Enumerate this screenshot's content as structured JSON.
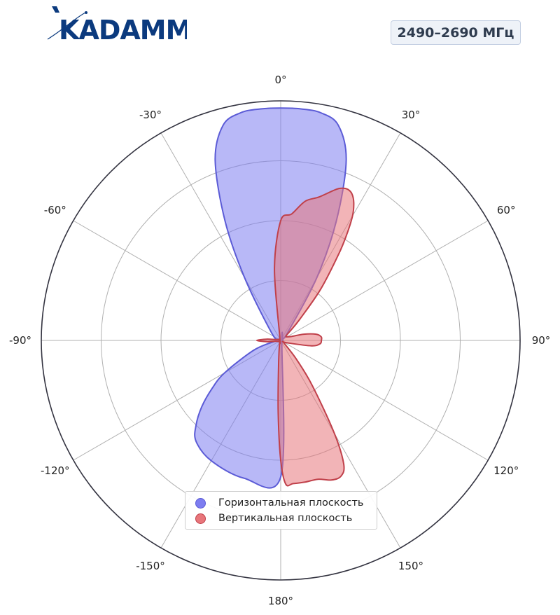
{
  "brand": {
    "name": "KADAMM"
  },
  "badge": {
    "text": "2490–2690 МГц"
  },
  "chart_data": {
    "type": "polar",
    "theta_zero": "top",
    "theta_direction": "clockwise",
    "theta_tick_labels": [
      "0°",
      "30°",
      "60°",
      "90°",
      "120°",
      "150°",
      "180°",
      "-150°",
      "-120°",
      "-90°",
      "-60°",
      "-30°"
    ],
    "r_range": [
      0,
      1
    ],
    "r_gridlines": [
      0.25,
      0.5,
      0.75,
      1.0
    ],
    "grid": true,
    "legend_position": "bottom-center",
    "series": [
      {
        "name": "Горизонтальная плоскость",
        "color": "#5b5bd6",
        "fill": "#7d7df0",
        "theta_deg": [
          0,
          5,
          10,
          15,
          20,
          25,
          30,
          40,
          60,
          80,
          90,
          100,
          120,
          150,
          180,
          195,
          210,
          220,
          225,
          230,
          235,
          240,
          250,
          260,
          265,
          270,
          275,
          290,
          310,
          330,
          335,
          340,
          345,
          350,
          355
        ],
        "r": [
          0.97,
          0.97,
          0.965,
          0.93,
          0.8,
          0.55,
          0.3,
          0.05,
          0.01,
          0.01,
          0.01,
          0.01,
          0.01,
          0.01,
          0.57,
          0.595,
          0.58,
          0.55,
          0.5,
          0.43,
          0.35,
          0.27,
          0.12,
          0.03,
          0.02,
          0.01,
          0.01,
          0.01,
          0.05,
          0.3,
          0.55,
          0.8,
          0.93,
          0.965,
          0.97
        ]
      },
      {
        "name": "Вертикальная плоскость",
        "color": "#c0404a",
        "fill": "#e8767b",
        "theta_deg": [
          0,
          5,
          10,
          15,
          20,
          22,
          24,
          26,
          28,
          30,
          32,
          34,
          38,
          42,
          45,
          50,
          60,
          70,
          75,
          80,
          85,
          90,
          95,
          100,
          110,
          120,
          130,
          140,
          145,
          150,
          153,
          156,
          160,
          165,
          170,
          175,
          178,
          180,
          182,
          185,
          195,
          200,
          240,
          260,
          265,
          270,
          275,
          280,
          300,
          340,
          355
        ],
        "r": [
          0.5,
          0.53,
          0.59,
          0.62,
          0.67,
          0.685,
          0.69,
          0.68,
          0.65,
          0.6,
          0.52,
          0.43,
          0.27,
          0.12,
          0.06,
          0.03,
          0.03,
          0.05,
          0.1,
          0.15,
          0.17,
          0.17,
          0.165,
          0.13,
          0.03,
          0.01,
          0.02,
          0.1,
          0.23,
          0.45,
          0.58,
          0.62,
          0.62,
          0.6,
          0.6,
          0.6,
          0.6,
          0.5,
          0.3,
          0.1,
          0.02,
          0.01,
          0.01,
          0.02,
          0.06,
          0.1,
          0.06,
          0.02,
          0.01,
          0.01,
          0.3
        ]
      }
    ]
  }
}
